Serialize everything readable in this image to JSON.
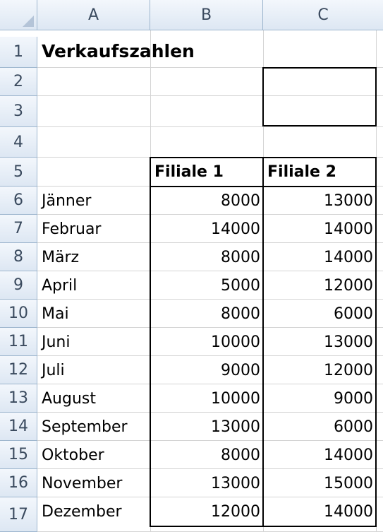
{
  "columns": [
    "A",
    "B",
    "C"
  ],
  "rows": [
    "1",
    "2",
    "3",
    "4",
    "5",
    "6",
    "7",
    "8",
    "9",
    "10",
    "11",
    "12",
    "13",
    "14",
    "15",
    "16",
    "17"
  ],
  "title": "Verkaufszahlen",
  "headers": {
    "b": "Filiale 1",
    "c": "Filiale 2"
  },
  "months": [
    "Jänner",
    "Februar",
    "März",
    "April",
    "Mai",
    "Juni",
    "Juli",
    "August",
    "September",
    "Oktober",
    "November",
    "Dezember"
  ],
  "filiale1": [
    "8000",
    "14000",
    "8000",
    "5000",
    "8000",
    "10000",
    "9000",
    "10000",
    "13000",
    "8000",
    "13000",
    "12000"
  ],
  "filiale2": [
    "13000",
    "14000",
    "14000",
    "12000",
    "6000",
    "13000",
    "12000",
    "9000",
    "6000",
    "14000",
    "15000",
    "14000"
  ]
}
